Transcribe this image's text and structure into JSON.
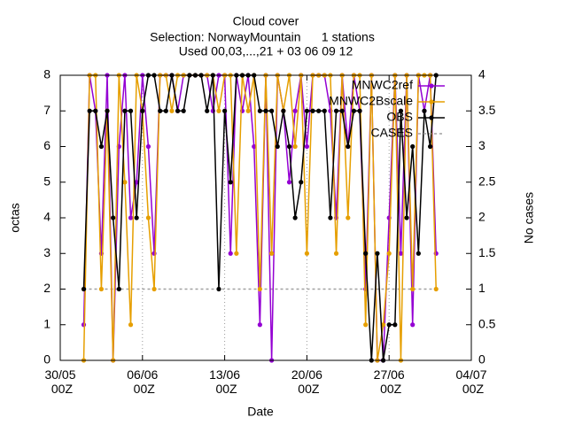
{
  "chart_data": {
    "type": "line",
    "title": "Cloud cover",
    "subtitle": [
      "Selection: NorwayMountain      1 stations",
      "Used 00,03,...,21 + 03 06 09 12"
    ],
    "xlabel": "Date",
    "ylabel": "octas",
    "y2label": "No cases",
    "x": [
      "01/06 00Z",
      "01/06 12Z",
      "02/06 00Z",
      "02/06 12Z",
      "03/06 00Z",
      "03/06 12Z",
      "04/06 00Z",
      "04/06 12Z",
      "05/06 00Z",
      "05/06 12Z",
      "06/06 00Z",
      "06/06 12Z",
      "07/06 00Z",
      "07/06 12Z",
      "08/06 00Z",
      "08/06 12Z",
      "09/06 00Z",
      "09/06 12Z",
      "10/06 00Z",
      "10/06 12Z",
      "11/06 00Z",
      "11/06 12Z",
      "12/06 00Z",
      "12/06 12Z",
      "13/06 00Z",
      "13/06 12Z",
      "14/06 00Z",
      "14/06 12Z",
      "15/06 00Z",
      "15/06 12Z",
      "16/06 00Z",
      "16/06 12Z",
      "17/06 00Z",
      "17/06 12Z",
      "18/06 00Z",
      "18/06 12Z",
      "19/06 00Z",
      "19/06 12Z",
      "20/06 00Z",
      "20/06 12Z",
      "21/06 00Z",
      "21/06 12Z",
      "22/06 00Z",
      "22/06 12Z",
      "23/06 00Z",
      "23/06 12Z",
      "24/06 00Z",
      "24/06 12Z",
      "25/06 00Z",
      "25/06 12Z",
      "26/06 00Z",
      "26/06 12Z",
      "27/06 00Z",
      "27/06 12Z",
      "28/06 00Z",
      "28/06 12Z",
      "29/06 00Z",
      "29/06 12Z",
      "30/06 00Z",
      "30/06 12Z",
      "01/07 00Z"
    ],
    "series": [
      {
        "name": "MNWC2ref",
        "color": "#9400d3",
        "values": [
          1,
          8,
          7,
          3,
          8,
          0,
          6,
          8,
          4,
          5,
          8,
          6,
          3,
          8,
          8,
          8,
          7,
          8,
          8,
          8,
          8,
          8,
          7,
          8,
          8,
          3,
          8,
          7,
          8,
          6,
          1,
          8,
          0,
          8,
          7,
          5,
          7,
          8,
          6,
          8,
          8,
          8,
          7,
          4,
          8,
          6,
          8,
          7,
          2,
          8,
          0,
          0,
          4,
          8,
          3,
          8,
          1,
          8,
          7,
          8,
          3
        ]
      },
      {
        "name": "MNWC2Bscale",
        "color": "#e69f00",
        "values": [
          0,
          8,
          8,
          2,
          7,
          0,
          8,
          5,
          1,
          8,
          7,
          4,
          2,
          8,
          8,
          7,
          8,
          8,
          8,
          8,
          8,
          8,
          8,
          7,
          8,
          8,
          3,
          8,
          7,
          8,
          2,
          8,
          3,
          8,
          7,
          8,
          6,
          8,
          3,
          8,
          8,
          8,
          8,
          3,
          8,
          4,
          8,
          8,
          1,
          8,
          0,
          1,
          3,
          8,
          0,
          8,
          2,
          8,
          8,
          8,
          2
        ]
      },
      {
        "name": "OBS",
        "color": "#000000",
        "values": [
          2,
          7,
          7,
          6,
          7,
          4,
          2,
          7,
          7,
          4,
          7,
          8,
          8,
          7,
          7,
          8,
          7,
          7,
          8,
          8,
          8,
          7,
          8,
          2,
          7,
          5,
          8,
          8,
          8,
          8,
          7,
          7,
          7,
          6,
          7,
          6,
          4,
          5,
          7,
          7,
          7,
          7,
          4,
          7,
          7,
          6,
          7,
          7,
          3,
          0,
          3,
          0,
          1,
          1,
          7,
          4,
          6,
          3,
          7,
          6,
          8
        ]
      },
      {
        "name": "CASES",
        "color": "#a0a0a0",
        "axis": "y2",
        "dashed": true,
        "values": [
          1,
          1,
          1,
          1,
          1,
          1,
          1,
          1,
          1,
          1,
          1,
          1,
          1,
          1,
          1,
          1,
          1,
          1,
          1,
          1,
          1,
          1,
          1,
          1,
          1,
          1,
          1,
          1,
          1,
          1,
          1,
          1,
          1,
          1,
          1,
          1,
          1,
          1,
          1,
          1,
          1,
          1,
          1,
          1,
          1,
          1,
          1,
          1,
          1,
          1,
          1,
          1,
          1,
          1,
          1,
          1,
          1,
          1,
          1,
          1,
          1
        ]
      }
    ],
    "xlim": [
      "30/05 00Z",
      "04/07 00Z"
    ],
    "xticks": [
      "30/05 00Z",
      "06/06 00Z",
      "13/06 00Z",
      "20/06 00Z",
      "27/06 00Z",
      "04/07 00Z"
    ],
    "ylim": [
      0,
      8
    ],
    "yticks": [
      0,
      1,
      2,
      3,
      4,
      5,
      6,
      7,
      8
    ],
    "y2lim": [
      0,
      4
    ],
    "y2ticks": [
      0,
      0.5,
      1,
      1.5,
      2,
      2.5,
      3,
      3.5,
      4
    ],
    "grid": "x",
    "legend": "top right"
  }
}
